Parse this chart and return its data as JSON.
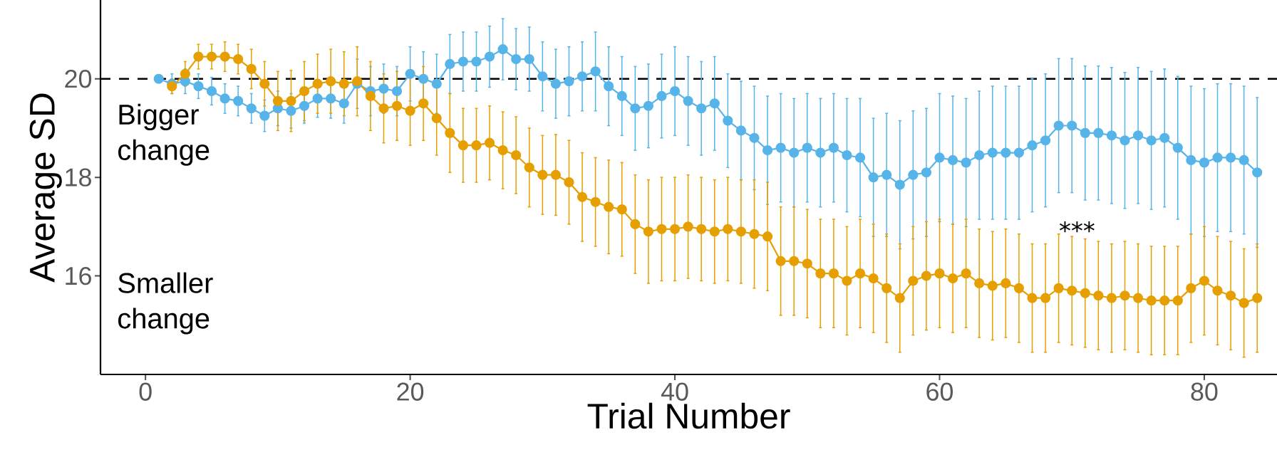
{
  "chart_data": {
    "type": "line",
    "xlabel": "Trial Number",
    "ylabel": "Average SD",
    "x": [
      1,
      2,
      3,
      4,
      5,
      6,
      7,
      8,
      9,
      10,
      11,
      12,
      13,
      14,
      15,
      16,
      17,
      18,
      19,
      20,
      21,
      22,
      23,
      24,
      25,
      26,
      27,
      28,
      29,
      30,
      31,
      32,
      33,
      34,
      35,
      36,
      37,
      38,
      39,
      40,
      41,
      42,
      43,
      44,
      45,
      46,
      47,
      48,
      49,
      50,
      51,
      52,
      53,
      54,
      55,
      56,
      57,
      58,
      59,
      60,
      61,
      62,
      63,
      64,
      65,
      66,
      67,
      68,
      69,
      70,
      71,
      72,
      73,
      74,
      75,
      76,
      77,
      78,
      79,
      80,
      81,
      82,
      83,
      84
    ],
    "series": [
      {
        "color": "#56b4e9",
        "values": [
          20.0,
          19.9,
          19.95,
          19.85,
          19.75,
          19.6,
          19.55,
          19.4,
          19.25,
          19.4,
          19.35,
          19.45,
          19.6,
          19.6,
          19.5,
          19.9,
          19.75,
          19.8,
          19.75,
          20.1,
          20.0,
          19.9,
          20.3,
          20.35,
          20.35,
          20.45,
          20.6,
          20.4,
          20.4,
          20.05,
          19.9,
          19.95,
          20.05,
          20.15,
          19.85,
          19.65,
          19.4,
          19.45,
          19.65,
          19.75,
          19.55,
          19.4,
          19.5,
          19.15,
          18.95,
          18.8,
          18.55,
          18.6,
          18.5,
          18.6,
          18.5,
          18.6,
          18.45,
          18.4,
          18.0,
          18.05,
          17.85,
          18.05,
          18.1,
          18.4,
          18.35,
          18.3,
          18.45,
          18.5,
          18.5,
          18.5,
          18.65,
          18.75,
          19.05,
          19.05,
          18.9,
          18.9,
          18.85,
          18.75,
          18.85,
          18.75,
          18.8,
          18.6,
          18.35,
          18.3,
          18.4,
          18.4,
          18.35,
          18.1
        ],
        "errors": [
          null,
          0.2,
          0.25,
          0.25,
          0.28,
          0.3,
          0.3,
          0.3,
          0.32,
          0.35,
          0.35,
          0.35,
          0.38,
          0.4,
          0.4,
          0.5,
          0.5,
          0.5,
          0.5,
          0.55,
          0.55,
          0.6,
          0.6,
          0.6,
          0.6,
          0.62,
          0.62,
          0.62,
          0.65,
          0.7,
          0.7,
          0.7,
          0.7,
          0.8,
          0.8,
          0.8,
          0.85,
          0.85,
          0.85,
          0.9,
          0.9,
          0.95,
          0.95,
          0.95,
          1.0,
          1.05,
          1.1,
          1.1,
          1.1,
          1.1,
          1.1,
          1.1,
          1.15,
          1.2,
          1.2,
          1.25,
          1.3,
          1.3,
          1.3,
          1.3,
          1.3,
          1.3,
          1.3,
          1.35,
          1.35,
          1.35,
          1.35,
          1.35,
          1.36,
          1.36,
          1.36,
          1.36,
          1.38,
          1.38,
          1.38,
          1.4,
          1.4,
          1.45,
          1.5,
          1.5,
          1.5,
          1.5,
          1.5,
          1.52
        ]
      },
      {
        "color": "#e69f00",
        "values": [
          null,
          19.85,
          20.1,
          20.45,
          20.45,
          20.45,
          20.4,
          20.2,
          19.9,
          19.55,
          19.55,
          19.75,
          19.9,
          19.95,
          19.9,
          19.95,
          19.65,
          19.4,
          19.45,
          19.35,
          19.5,
          19.2,
          18.9,
          18.65,
          18.65,
          18.7,
          18.55,
          18.45,
          18.2,
          18.05,
          18.05,
          17.9,
          17.6,
          17.5,
          17.4,
          17.35,
          17.05,
          16.9,
          16.95,
          16.95,
          17.0,
          16.95,
          16.9,
          16.95,
          16.9,
          16.85,
          16.8,
          16.3,
          16.3,
          16.25,
          16.05,
          16.05,
          15.9,
          16.05,
          15.95,
          15.75,
          15.55,
          15.9,
          16.0,
          16.05,
          15.95,
          16.05,
          15.85,
          15.8,
          15.85,
          15.75,
          15.55,
          15.55,
          15.75,
          15.7,
          15.65,
          15.6,
          15.55,
          15.6,
          15.55,
          15.5,
          15.5,
          15.5,
          15.75,
          15.9,
          15.7,
          15.6,
          15.45,
          15.55
        ],
        "errors": [
          null,
          0.15,
          0.25,
          0.25,
          0.25,
          0.3,
          0.3,
          0.4,
          0.45,
          0.6,
          0.62,
          0.6,
          0.6,
          0.65,
          0.65,
          0.7,
          0.7,
          0.7,
          0.7,
          0.7,
          0.75,
          0.75,
          0.8,
          0.75,
          0.75,
          0.75,
          0.78,
          0.78,
          0.8,
          0.8,
          0.82,
          0.85,
          0.9,
          0.9,
          0.95,
          0.95,
          1.0,
          1.05,
          1.05,
          1.05,
          1.05,
          1.05,
          1.05,
          1.05,
          1.05,
          1.1,
          1.1,
          1.1,
          1.1,
          1.1,
          1.1,
          1.1,
          1.1,
          1.1,
          1.1,
          1.1,
          1.1,
          1.1,
          1.1,
          1.1,
          1.1,
          1.1,
          1.1,
          1.1,
          1.1,
          1.1,
          1.1,
          1.1,
          1.1,
          1.1,
          1.1,
          1.1,
          1.1,
          1.1,
          1.1,
          1.1,
          1.1,
          1.1,
          1.1,
          1.1,
          1.1,
          1.1,
          1.1,
          1.1
        ]
      }
    ],
    "marker": "circle",
    "line_style": "solid",
    "grid": false,
    "xlim": [
      -3.4,
      85.5
    ],
    "ylim": [
      14.0,
      21.6
    ],
    "xticks": [
      0,
      20,
      40,
      60,
      80
    ],
    "yticks": [
      16,
      18,
      20
    ],
    "ref_lines": [
      {
        "axis": "y",
        "value": 20,
        "color": "#000000",
        "line_style": "dashed"
      }
    ],
    "annotations": [
      "Bigger change",
      "Smaller change",
      "***"
    ]
  }
}
